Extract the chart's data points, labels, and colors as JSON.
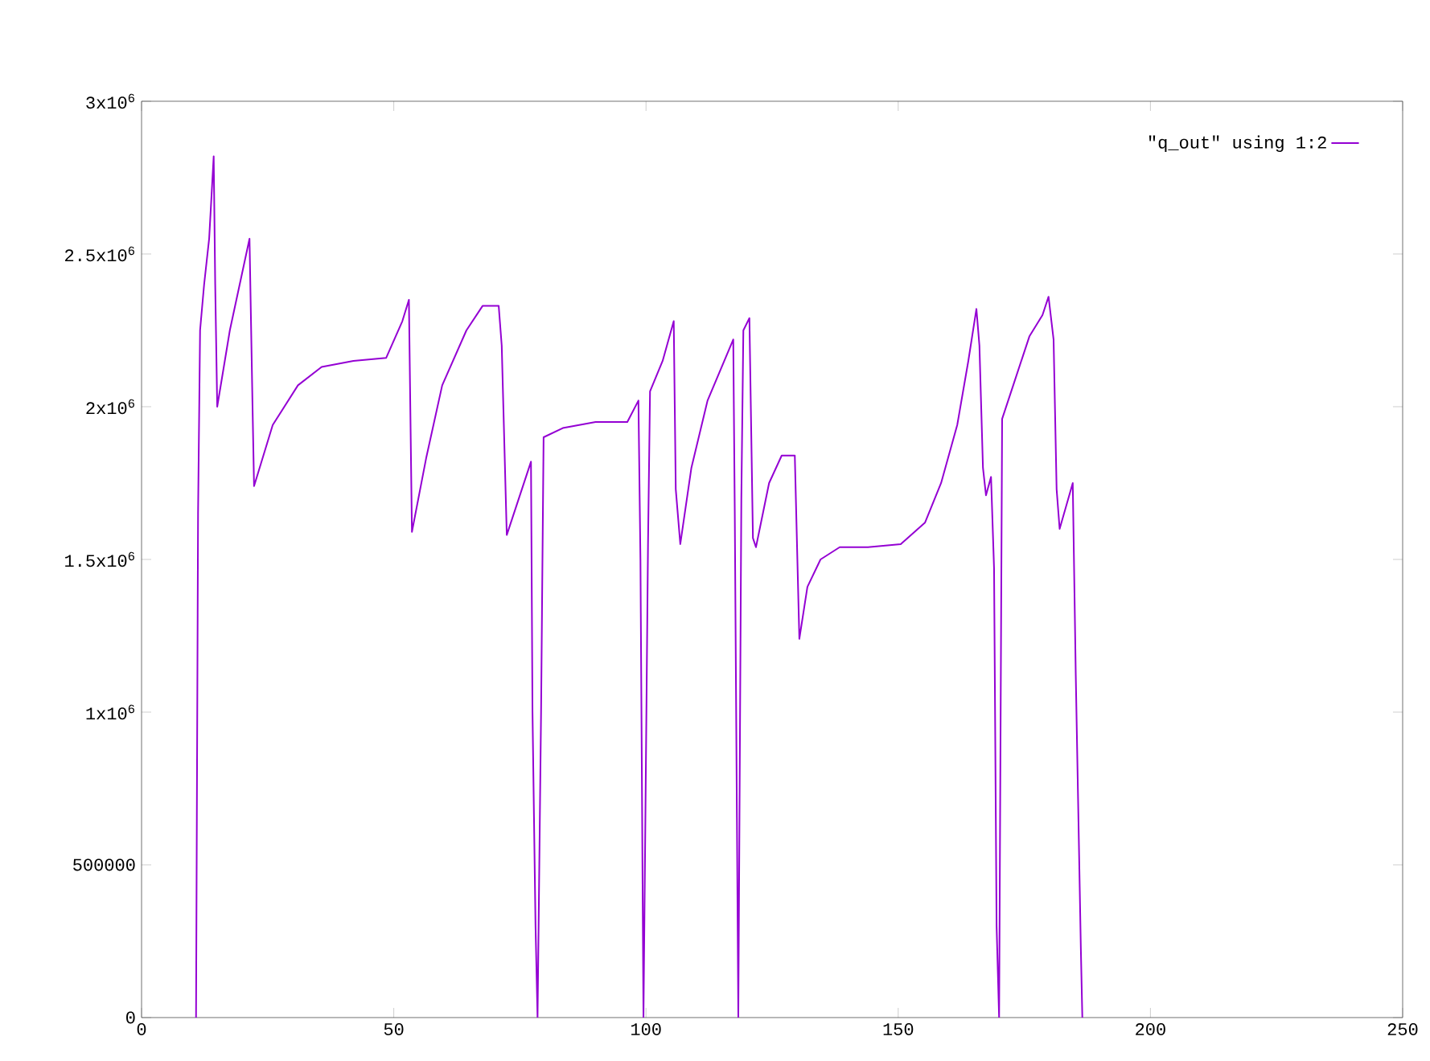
{
  "chart_data": {
    "type": "line",
    "x": [
      10.8,
      11.2,
      11.6,
      12.4,
      13.4,
      14.3,
      14.6,
      15.0,
      17.5,
      21.4,
      22.0,
      22.3,
      26.0,
      31.0,
      35.7,
      42.0,
      48.5,
      51.7,
      53.0,
      53.6,
      56.4,
      59.6,
      64.4,
      67.6,
      70.8,
      71.4,
      72.4,
      77.2,
      77.5,
      78.1,
      78.5,
      79.2,
      79.7,
      83.5,
      90.0,
      96.3,
      98.5,
      98.9,
      99.5,
      100.4,
      100.8,
      103.3,
      105.5,
      105.9,
      106.8,
      109.0,
      112.2,
      117.3,
      117.6,
      118.3,
      118.9,
      119.3,
      120.5,
      121.2,
      121.8,
      124.4,
      126.9,
      129.5,
      130.4,
      132.0,
      134.6,
      138.4,
      144.0,
      150.5,
      155.3,
      158.5,
      161.7,
      163.9,
      165.5,
      166.1,
      166.8,
      167.4,
      168.4,
      169.0,
      169.5,
      170.0,
      170.6,
      172.8,
      176.0,
      178.6,
      179.8,
      180.8,
      181.4,
      182.0,
      184.6,
      185.2,
      186.2,
      186.5
    ],
    "series": [
      {
        "name": "\"q_out\" using 1:2",
        "color": "#9400d3",
        "values": [
          0,
          1650000,
          2250000,
          2400000,
          2550000,
          2820000,
          2400000,
          2000000,
          2250000,
          2550000,
          2000000,
          1740000,
          1940000,
          2070000,
          2130000,
          2150000,
          2160000,
          2280000,
          2350000,
          1590000,
          1830000,
          2070000,
          2250000,
          2330000,
          2330000,
          2200000,
          1580000,
          1820000,
          1000000,
          300000,
          0,
          1000000,
          1900000,
          1930000,
          1950000,
          1950000,
          2020000,
          1500000,
          0,
          1550000,
          2050000,
          2150000,
          2280000,
          1730000,
          1550000,
          1800000,
          2020000,
          2220000,
          1650000,
          0,
          1700000,
          2250000,
          2290000,
          1570000,
          1540000,
          1750000,
          1840000,
          1840000,
          1240000,
          1410000,
          1500000,
          1540000,
          1540000,
          1550000,
          1620000,
          1750000,
          1940000,
          2150000,
          2320000,
          2200000,
          1800000,
          1710000,
          1770000,
          1470000,
          300000,
          0,
          1960000,
          2070000,
          2230000,
          2300000,
          2360000,
          2220000,
          1730000,
          1600000,
          1750000,
          1120000,
          230000,
          0
        ]
      }
    ],
    "xlim": [
      0,
      250
    ],
    "ylim": [
      0,
      3000000
    ],
    "xticks": [
      0,
      50,
      100,
      150,
      200,
      250
    ],
    "yticks": [
      0,
      500000,
      {
        "value": 1000000,
        "label": "1x10$^{6}$"
      },
      {
        "value": 1500000,
        "label": "1.5x10$^{6}$"
      },
      {
        "value": 2000000,
        "label": "2x10$^{6}$"
      },
      {
        "value": 2500000,
        "label": "2.5x10$^{6}$"
      },
      {
        "value": 3000000,
        "label": "3x10$^{6}$"
      }
    ],
    "grid": false,
    "legend": "top right",
    "marker": "none",
    "line_style": "solid"
  }
}
